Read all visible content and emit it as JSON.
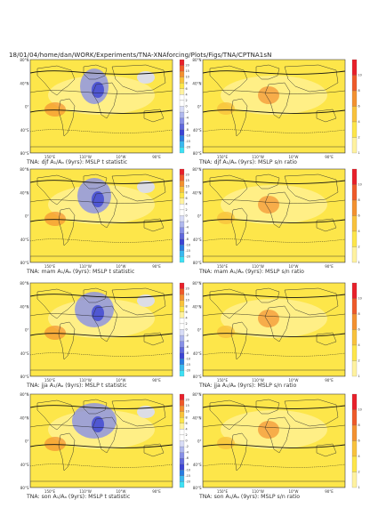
{
  "page_title": "18/01/04/home/dan/WORK/Experiments/TNA-XNAforcing/Plots/Figs/TNA/CPTNA1sN",
  "axes": {
    "lat_labels": [
      "80°N",
      "40°N",
      "0°",
      "40°S",
      "80°S"
    ],
    "lon_labels": [
      "150°E",
      "110°W",
      "10°W",
      "90°E"
    ]
  },
  "colorbars": {
    "t_statistic": {
      "colors": [
        "#e8202a",
        "#ee5a2a",
        "#f39130",
        "#f8c23c",
        "#fde64a",
        "#fff2a0",
        "#ffffff",
        "#ffffff",
        "#d8dcf6",
        "#b0b8ee",
        "#8890e6",
        "#6068dc",
        "#3c44d2",
        "#2a7ce0",
        "#3ab8ee",
        "#3ee0f4"
      ],
      "labels": [
        "20",
        "15",
        "10",
        "8",
        "6",
        "4",
        "2",
        "0",
        "-2",
        "-4",
        "-6",
        "-8",
        "-10",
        "-15",
        "-20"
      ]
    },
    "sn_ratio": {
      "colors": [
        "#e8202a",
        "#ee5a2a",
        "#f39130",
        "#f8c23c",
        "#fde64a",
        "#fff2a0"
      ],
      "labels": [
        "10",
        "8",
        "6",
        "4",
        "2",
        "1"
      ]
    }
  },
  "panels": [
    {
      "caption": "TNA: djf A₁/Aₐ (9yrs): MSLP t statistic",
      "type": "t"
    },
    {
      "caption": "TNA: djf A₁/Aₐ (9yrs): MSLP s/n ratio",
      "type": "sn"
    },
    {
      "caption": "TNA: mam A₁/Aₐ (9yrs): MSLP t statistic",
      "type": "t"
    },
    {
      "caption": "TNA: mam A₁/Aₐ (9yrs): MSLP s/n ratio",
      "type": "sn"
    },
    {
      "caption": "TNA: jja A₁/Aₐ (9yrs): MSLP t statistic",
      "type": "t"
    },
    {
      "caption": "TNA: jja A₁/Aₐ (9yrs): MSLP s/n ratio",
      "type": "sn"
    },
    {
      "caption": "TNA: son A₁/Aₐ (9yrs): MSLP t statistic",
      "type": "t"
    },
    {
      "caption": "TNA: son A₁/Aₐ (9yrs): MSLP s/n ratio",
      "type": "sn"
    }
  ]
}
